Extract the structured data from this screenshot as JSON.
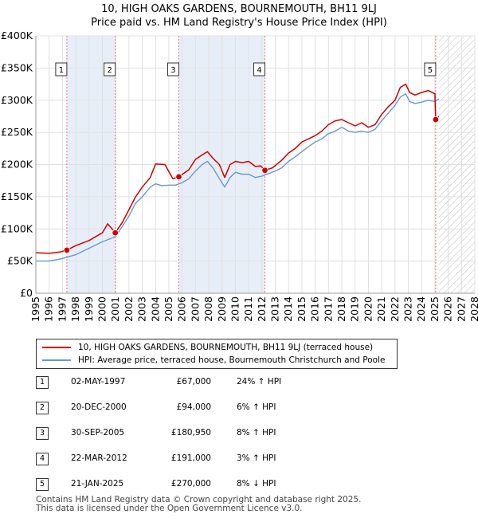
{
  "chart_data": {
    "type": "line",
    "title": "10, HIGH OAKS GARDENS, BOURNEMOUTH, BH11 9LJ",
    "subtitle": "Price paid vs. HM Land Registry's House Price Index (HPI)",
    "xlim": [
      1995,
      2028
    ],
    "ylim": [
      0,
      400000
    ],
    "y_ticks": [
      0,
      50000,
      100000,
      150000,
      200000,
      250000,
      300000,
      350000,
      400000
    ],
    "y_tick_labels": [
      "£0",
      "£50K",
      "£100K",
      "£150K",
      "£200K",
      "£250K",
      "£300K",
      "£350K",
      "£400K"
    ],
    "x_ticks": [
      1995,
      1996,
      1997,
      1998,
      1999,
      2000,
      2001,
      2002,
      2003,
      2004,
      2005,
      2006,
      2007,
      2008,
      2009,
      2010,
      2011,
      2012,
      2013,
      2014,
      2015,
      2016,
      2017,
      2018,
      2019,
      2020,
      2021,
      2022,
      2023,
      2024,
      2025,
      2026,
      2027,
      2028
    ],
    "x_tick_labels": [
      "1995",
      "1996",
      "1997",
      "1998",
      "1999",
      "2000",
      "2001",
      "2002",
      "2003",
      "2004",
      "2005",
      "2006",
      "2007",
      "2008",
      "2009",
      "2010",
      "2011",
      "2012",
      "2013",
      "2014",
      "2015",
      "2016",
      "2017",
      "2018",
      "2019",
      "2020",
      "2021",
      "2022",
      "2023",
      "2024",
      "2025",
      "2026",
      "2027",
      "2028"
    ],
    "grid": true,
    "shaded_periods": [
      [
        1997.33,
        2000.97
      ],
      [
        2005.75,
        2012.22
      ]
    ],
    "future_hatch_start": 2025.3,
    "series": [
      {
        "name": "10, HIGH OAKS GARDENS, BOURNEMOUTH, BH11 9LJ (terraced house)",
        "color": "#cc0000",
        "x": [
          1995.0,
          1996.0,
          1996.8,
          1997.33,
          1998.0,
          1999.0,
          2000.0,
          2000.4,
          2000.97,
          2001.5,
          2002.0,
          2002.5,
          2003.0,
          2003.6,
          2004.0,
          2004.7,
          2005.3,
          2005.75,
          2006.5,
          2007.0,
          2007.5,
          2007.9,
          2008.3,
          2008.8,
          2009.2,
          2009.6,
          2010.0,
          2010.5,
          2011.0,
          2011.5,
          2011.9,
          2012.22,
          2012.8,
          2013.5,
          2014.0,
          2014.5,
          2015.0,
          2015.5,
          2016.0,
          2016.5,
          2017.0,
          2017.5,
          2018.0,
          2018.5,
          2019.0,
          2019.5,
          2020.0,
          2020.5,
          2021.0,
          2021.5,
          2022.0,
          2022.4,
          2022.8,
          2023.1,
          2023.5,
          2024.0,
          2024.5,
          2025.0,
          2025.06,
          2025.3
        ],
        "values": [
          63000,
          62000,
          64000,
          67000,
          74000,
          82000,
          94000,
          108000,
          94000,
          110000,
          130000,
          150000,
          165000,
          180000,
          201000,
          200000,
          178000,
          180950,
          192000,
          208000,
          215000,
          220000,
          210000,
          200000,
          180000,
          200000,
          205000,
          203000,
          205000,
          197000,
          198000,
          191000,
          195000,
          207000,
          218000,
          225000,
          235000,
          240000,
          245000,
          252000,
          262000,
          268000,
          270000,
          265000,
          260000,
          265000,
          258000,
          262000,
          278000,
          290000,
          300000,
          320000,
          325000,
          312000,
          308000,
          312000,
          315000,
          310000,
          270000,
          275000
        ]
      },
      {
        "name": "HPI: Average price, terraced house, Bournemouth Christchurch and Poole",
        "color": "#6699cc",
        "x": [
          1995.0,
          1996.0,
          1997.0,
          1998.0,
          1999.0,
          2000.0,
          2001.0,
          2002.0,
          2002.5,
          2003.0,
          2003.6,
          2004.0,
          2004.5,
          2005.0,
          2005.5,
          2006.0,
          2006.5,
          2007.0,
          2007.5,
          2007.9,
          2008.3,
          2008.8,
          2009.2,
          2009.6,
          2010.0,
          2010.5,
          2011.0,
          2011.5,
          2012.0,
          2012.5,
          2013.0,
          2013.5,
          2014.0,
          2014.5,
          2015.0,
          2015.5,
          2016.0,
          2016.5,
          2017.0,
          2017.5,
          2018.0,
          2018.5,
          2019.0,
          2019.5,
          2020.0,
          2020.5,
          2021.0,
          2021.5,
          2022.0,
          2022.4,
          2022.8,
          2023.1,
          2023.5,
          2024.0,
          2024.5,
          2025.0,
          2025.3
        ],
        "values": [
          50000,
          50000,
          54000,
          60000,
          70000,
          80000,
          88000,
          120000,
          140000,
          150000,
          165000,
          170000,
          167000,
          168000,
          168000,
          172000,
          178000,
          190000,
          200000,
          205000,
          195000,
          178000,
          165000,
          180000,
          188000,
          185000,
          185000,
          180000,
          182000,
          186000,
          190000,
          195000,
          205000,
          212000,
          220000,
          228000,
          235000,
          240000,
          248000,
          252000,
          258000,
          252000,
          250000,
          252000,
          250000,
          255000,
          268000,
          280000,
          292000,
          305000,
          310000,
          298000,
          295000,
          297000,
          300000,
          298000,
          302000
        ]
      }
    ],
    "sales": [
      {
        "label": "1",
        "x": 1997.33,
        "price": 67000
      },
      {
        "label": "2",
        "x": 2000.97,
        "price": 94000
      },
      {
        "label": "3",
        "x": 2005.75,
        "price": 180950
      },
      {
        "label": "4",
        "x": 2012.22,
        "price": 191000
      },
      {
        "label": "5",
        "x": 2025.06,
        "price": 270000
      }
    ]
  },
  "legend": {
    "price_paid": "10, HIGH OAKS GARDENS, BOURNEMOUTH, BH11 9LJ (terraced house)",
    "hpi": "HPI: Average price, terraced house, Bournemouth Christchurch and Poole"
  },
  "table": {
    "rows": [
      {
        "num": "1",
        "date": "02-MAY-1997",
        "price": "£67,000",
        "hpi": "24% ↑ HPI"
      },
      {
        "num": "2",
        "date": "20-DEC-2000",
        "price": "£94,000",
        "hpi": "6% ↑ HPI"
      },
      {
        "num": "3",
        "date": "30-SEP-2005",
        "price": "£180,950",
        "hpi": "8% ↑ HPI"
      },
      {
        "num": "4",
        "date": "22-MAR-2012",
        "price": "£191,000",
        "hpi": "3% ↑ HPI"
      },
      {
        "num": "5",
        "date": "21-JAN-2025",
        "price": "£270,000",
        "hpi": "8% ↓ HPI"
      }
    ]
  },
  "footer": {
    "line1": "Contains HM Land Registry data © Crown copyright and database right 2025.",
    "line2": "This data is licensed under the Open Government Licence v3.0."
  }
}
